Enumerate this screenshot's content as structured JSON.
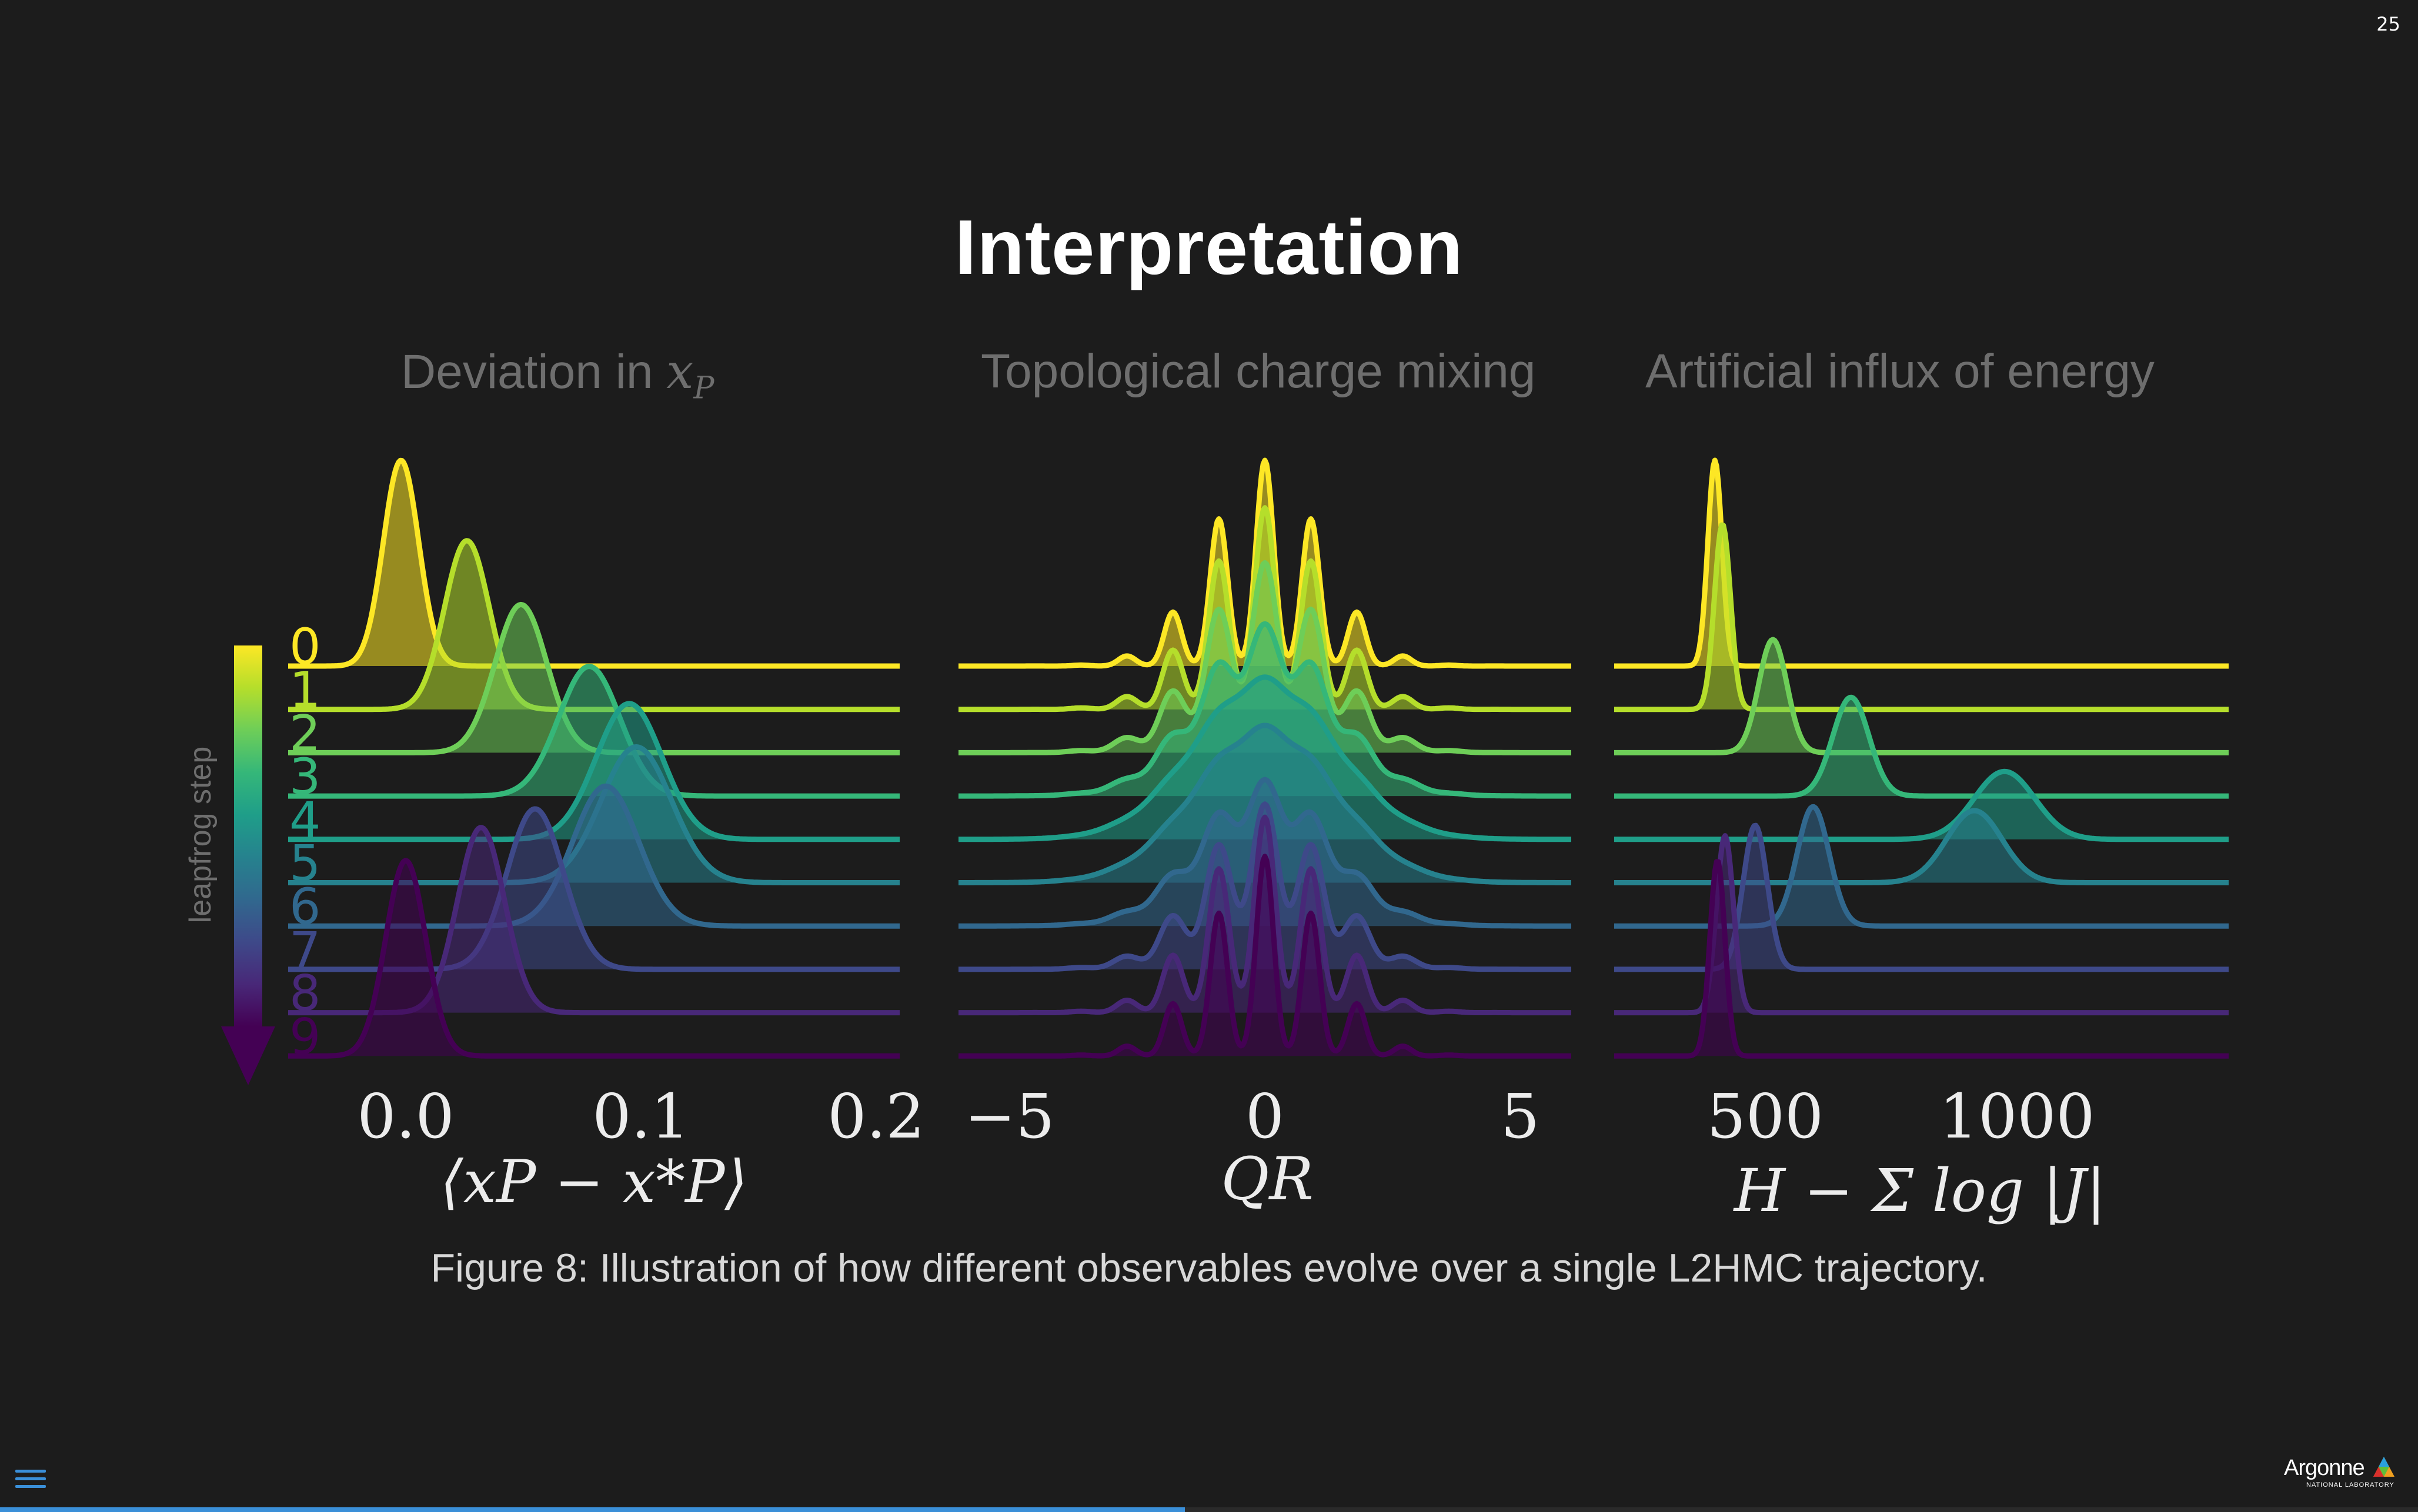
{
  "slide": {
    "number": "25",
    "title": "Interpretation",
    "caption": "Figure 8: Illustration of how different observables evolve over a single L2HMC trajectory.",
    "progress": 0.49
  },
  "logo": {
    "name": "Argonne",
    "subtitle": "NATIONAL LABORATORY"
  },
  "colorbar": {
    "label": "leapfrog step",
    "ticks": [
      "0",
      "1",
      "2",
      "3",
      "4",
      "5",
      "6",
      "7",
      "8",
      "9"
    ]
  },
  "colors": {
    "viridis": [
      "#fde725",
      "#b5de2b",
      "#6ece58",
      "#35b779",
      "#1f9e89",
      "#26828e",
      "#31688e",
      "#3e4989",
      "#482878",
      "#440154"
    ],
    "background": "#1c1c1c",
    "accent": "#3a8fd8"
  },
  "chart_data": [
    {
      "type": "area",
      "title_text": "Deviation in ",
      "title_math": "xP",
      "xlabel": "⟨xP − x*P⟩",
      "xticks": [
        "0.0",
        "0.1",
        "0.2"
      ],
      "xtick_values": [
        0.0,
        0.1,
        0.2
      ],
      "xlim": [
        -0.05,
        0.21
      ],
      "series": [
        {
          "name": "0",
          "peaks": [
            {
              "mu": -0.002,
              "sigma": 0.0075,
              "amp": 1.0
            }
          ]
        },
        {
          "name": "1",
          "peaks": [
            {
              "mu": 0.026,
              "sigma": 0.0095,
              "amp": 0.82
            }
          ]
        },
        {
          "name": "2",
          "peaks": [
            {
              "mu": 0.049,
              "sigma": 0.011,
              "amp": 0.72
            }
          ]
        },
        {
          "name": "3",
          "peaks": [
            {
              "mu": 0.078,
              "sigma": 0.013,
              "amp": 0.63
            }
          ]
        },
        {
          "name": "4",
          "peaks": [
            {
              "mu": 0.095,
              "sigma": 0.014,
              "amp": 0.66
            }
          ]
        },
        {
          "name": "5",
          "peaks": [
            {
              "mu": 0.098,
              "sigma": 0.015,
              "amp": 0.66
            }
          ]
        },
        {
          "name": "6",
          "peaks": [
            {
              "mu": 0.085,
              "sigma": 0.014,
              "amp": 0.68
            }
          ]
        },
        {
          "name": "7",
          "peaks": [
            {
              "mu": 0.055,
              "sigma": 0.012,
              "amp": 0.78
            }
          ]
        },
        {
          "name": "8",
          "peaks": [
            {
              "mu": 0.032,
              "sigma": 0.01,
              "amp": 0.9
            }
          ]
        },
        {
          "name": "9",
          "peaks": [
            {
              "mu": 0.0,
              "sigma": 0.0085,
              "amp": 0.95
            }
          ]
        }
      ]
    },
    {
      "type": "area",
      "title_text": "Topological charge mixing",
      "title_math": "",
      "xlabel": "QR",
      "xticks": [
        "−5",
        "0",
        "5"
      ],
      "xtick_values": [
        -5,
        0,
        5
      ],
      "xlim": [
        -6.0,
        6.0
      ],
      "series": [
        {
          "name": "0",
          "comb": {
            "spacing": 0.9,
            "width": 0.17,
            "env": 1.1,
            "amp": 1.0
          }
        },
        {
          "name": "1",
          "comb": {
            "spacing": 0.9,
            "width": 0.2,
            "env": 1.15,
            "amp": 0.98
          }
        },
        {
          "name": "2",
          "comb": {
            "spacing": 0.9,
            "width": 0.26,
            "env": 1.2,
            "amp": 0.92
          }
        },
        {
          "name": "3",
          "comb": {
            "spacing": 0.9,
            "width": 0.34,
            "env": 1.25,
            "amp": 0.8
          }
        },
        {
          "name": "4",
          "comb": {
            "spacing": 0.9,
            "width": 0.45,
            "env": 1.3,
            "amp": 0.65
          }
        },
        {
          "name": "5",
          "comb": {
            "spacing": 0.9,
            "width": 0.45,
            "env": 1.3,
            "amp": 0.63
          }
        },
        {
          "name": "6",
          "comb": {
            "spacing": 0.9,
            "width": 0.34,
            "env": 1.25,
            "amp": 0.68
          }
        },
        {
          "name": "7",
          "comb": {
            "spacing": 0.9,
            "width": 0.26,
            "env": 1.2,
            "amp": 0.8
          }
        },
        {
          "name": "8",
          "comb": {
            "spacing": 0.9,
            "width": 0.2,
            "env": 1.15,
            "amp": 0.95
          }
        },
        {
          "name": "9",
          "comb": {
            "spacing": 0.9,
            "width": 0.17,
            "env": 1.1,
            "amp": 0.97
          }
        }
      ]
    },
    {
      "type": "area",
      "title_text": "Artificial influx of energy",
      "title_math": "",
      "xlabel": "H − Σ log |J|",
      "xticks": [
        "500",
        "1000"
      ],
      "xtick_values": [
        500,
        1000
      ],
      "xlim": [
        200,
        1420
      ],
      "series": [
        {
          "name": "0",
          "peaks": [
            {
              "mu": 400,
              "sigma": 14,
              "amp": 1.0
            }
          ]
        },
        {
          "name": "1",
          "peaks": [
            {
              "mu": 415,
              "sigma": 16,
              "amp": 0.9
            }
          ]
        },
        {
          "name": "2",
          "peaks": [
            {
              "mu": 515,
              "sigma": 28,
              "amp": 0.55
            }
          ]
        },
        {
          "name": "3",
          "peaks": [
            {
              "mu": 670,
              "sigma": 36,
              "amp": 0.48
            }
          ]
        },
        {
          "name": "4",
          "peaks": [
            {
              "mu": 975,
              "sigma": 60,
              "amp": 0.33
            }
          ]
        },
        {
          "name": "5",
          "peaks": [
            {
              "mu": 915,
              "sigma": 55,
              "amp": 0.35
            }
          ]
        },
        {
          "name": "6",
          "peaks": [
            {
              "mu": 595,
              "sigma": 32,
              "amp": 0.58
            }
          ]
        },
        {
          "name": "7",
          "peaks": [
            {
              "mu": 480,
              "sigma": 24,
              "amp": 0.7
            }
          ]
        },
        {
          "name": "8",
          "peaks": [
            {
              "mu": 420,
              "sigma": 17,
              "amp": 0.86
            }
          ]
        },
        {
          "name": "9",
          "peaks": [
            {
              "mu": 405,
              "sigma": 15,
              "amp": 0.95
            }
          ]
        }
      ]
    }
  ]
}
